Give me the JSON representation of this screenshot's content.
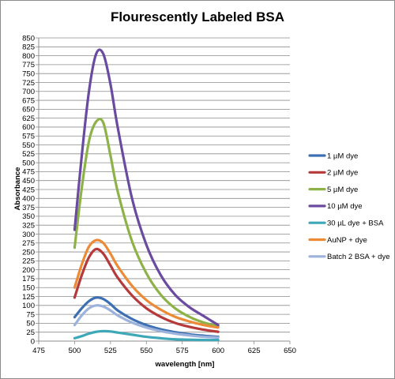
{
  "chart_data": {
    "type": "line",
    "title": "Flourescently Labeled BSA",
    "xlabel": "wavelength [nm]",
    "ylabel": "Absorbance",
    "xlim": [
      475,
      650
    ],
    "ylim": [
      0,
      850
    ],
    "xticks": [
      475,
      500,
      525,
      550,
      575,
      600,
      625,
      650
    ],
    "yticks": [
      0,
      25,
      50,
      75,
      100,
      125,
      150,
      175,
      200,
      225,
      250,
      275,
      300,
      325,
      350,
      375,
      400,
      425,
      450,
      475,
      500,
      525,
      550,
      575,
      600,
      625,
      650,
      675,
      700,
      725,
      750,
      775,
      800,
      825,
      850
    ],
    "grid": "horizontal",
    "legend": "right",
    "series": [
      {
        "name": "1 µM dye",
        "color": "#3d6fb3",
        "x": [
          500,
          505,
          510,
          515,
          520,
          525,
          530,
          540,
          550,
          560,
          570,
          580,
          590,
          600
        ],
        "y": [
          67,
          92,
          112,
          122,
          118,
          104,
          86,
          62,
          45,
          33,
          25,
          19,
          15,
          12
        ]
      },
      {
        "name": "2 µM dye",
        "color": "#b53a39",
        "x": [
          500,
          505,
          510,
          515,
          520,
          525,
          530,
          540,
          550,
          560,
          570,
          580,
          590,
          600
        ],
        "y": [
          122,
          185,
          235,
          258,
          245,
          212,
          178,
          128,
          92,
          68,
          51,
          40,
          32,
          26
        ]
      },
      {
        "name": "5 µM dye",
        "color": "#8db348",
        "x": [
          500,
          505,
          510,
          515,
          520,
          525,
          530,
          540,
          550,
          560,
          570,
          580,
          590,
          600
        ],
        "y": [
          262,
          430,
          560,
          615,
          612,
          520,
          420,
          280,
          190,
          130,
          92,
          68,
          52,
          42
        ]
      },
      {
        "name": "10 µM dye",
        "color": "#6a4ba0",
        "x": [
          500,
          505,
          510,
          515,
          520,
          525,
          530,
          540,
          550,
          560,
          570,
          580,
          590,
          600
        ],
        "y": [
          312,
          520,
          700,
          805,
          805,
          720,
          600,
          400,
          270,
          185,
          130,
          95,
          70,
          45
        ]
      },
      {
        "name": "30 µL dye + BSA",
        "color": "#3ea8b9",
        "x": [
          500,
          505,
          510,
          515,
          520,
          525,
          530,
          540,
          550,
          560,
          570,
          580,
          590,
          600
        ],
        "y": [
          8,
          14,
          21,
          26,
          28,
          27,
          24,
          18,
          12,
          8,
          5,
          4,
          3,
          3
        ]
      },
      {
        "name": "AuNP + dye",
        "color": "#ec8a35",
        "x": [
          500,
          505,
          510,
          515,
          520,
          525,
          530,
          540,
          550,
          560,
          570,
          580,
          590,
          600
        ],
        "y": [
          150,
          215,
          265,
          283,
          275,
          245,
          210,
          155,
          115,
          88,
          68,
          55,
          45,
          38
        ]
      },
      {
        "name": "Batch 2 BSA + dye",
        "color": "#9bb3dc",
        "x": [
          500,
          505,
          510,
          515,
          520,
          525,
          530,
          540,
          550,
          560,
          570,
          580,
          590,
          600
        ],
        "y": [
          45,
          72,
          92,
          100,
          97,
          86,
          72,
          52,
          38,
          28,
          21,
          16,
          12,
          10
        ]
      }
    ]
  }
}
